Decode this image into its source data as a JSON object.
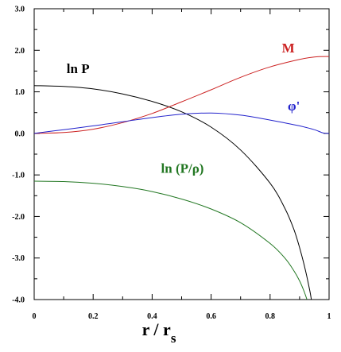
{
  "chart_data": {
    "type": "line",
    "xlim": [
      0,
      1
    ],
    "ylim": [
      -4.0,
      3.0
    ],
    "x_ticks": [
      "0",
      "0.2",
      "0.4",
      "0.6",
      "0.8",
      "1"
    ],
    "y_ticks": [
      "3.0",
      "2.0",
      "1.0",
      "0.0",
      "-1.0",
      "-2.0",
      "-3.0",
      "-4.0"
    ],
    "xlabel_main": "r / r",
    "xlabel_sub": "s",
    "grid": false,
    "series": [
      {
        "name": "ln P",
        "color": "#000000",
        "label_at": [
          0.11,
          1.45
        ],
        "points": [
          [
            0,
            1.15
          ],
          [
            0.1,
            1.13
          ],
          [
            0.2,
            1.07
          ],
          [
            0.3,
            0.95
          ],
          [
            0.4,
            0.77
          ],
          [
            0.5,
            0.52
          ],
          [
            0.6,
            0.15
          ],
          [
            0.7,
            -0.4
          ],
          [
            0.8,
            -1.2
          ],
          [
            0.85,
            -1.8
          ],
          [
            0.88,
            -2.3
          ],
          [
            0.9,
            -2.75
          ],
          [
            0.92,
            -3.3
          ],
          [
            0.935,
            -3.8
          ],
          [
            0.94,
            -4.0
          ]
        ]
      },
      {
        "name": "M",
        "color": "#cc2222",
        "label_at": [
          0.84,
          1.95
        ],
        "points": [
          [
            0,
            0
          ],
          [
            0.1,
            0.02
          ],
          [
            0.2,
            0.1
          ],
          [
            0.3,
            0.26
          ],
          [
            0.4,
            0.48
          ],
          [
            0.5,
            0.76
          ],
          [
            0.6,
            1.05
          ],
          [
            0.7,
            1.35
          ],
          [
            0.8,
            1.6
          ],
          [
            0.9,
            1.78
          ],
          [
            0.95,
            1.84
          ],
          [
            1.0,
            1.85
          ]
        ]
      },
      {
        "name": "φ'",
        "color": "#2222cc",
        "label_at": [
          0.86,
          0.55
        ],
        "points": [
          [
            0,
            0
          ],
          [
            0.1,
            0.09
          ],
          [
            0.2,
            0.18
          ],
          [
            0.3,
            0.28
          ],
          [
            0.4,
            0.38
          ],
          [
            0.5,
            0.46
          ],
          [
            0.6,
            0.49
          ],
          [
            0.7,
            0.44
          ],
          [
            0.8,
            0.32
          ],
          [
            0.9,
            0.18
          ],
          [
            0.95,
            0.09
          ],
          [
            0.98,
            0.01
          ],
          [
            1.0,
            0.0
          ]
        ]
      },
      {
        "name": "ln (P/ρ)",
        "color": "#227722",
        "label_at": [
          0.43,
          -0.95
        ],
        "points": [
          [
            0,
            -1.15
          ],
          [
            0.1,
            -1.16
          ],
          [
            0.2,
            -1.2
          ],
          [
            0.3,
            -1.28
          ],
          [
            0.4,
            -1.4
          ],
          [
            0.5,
            -1.58
          ],
          [
            0.6,
            -1.82
          ],
          [
            0.7,
            -2.15
          ],
          [
            0.8,
            -2.65
          ],
          [
            0.85,
            -3.0
          ],
          [
            0.88,
            -3.3
          ],
          [
            0.9,
            -3.55
          ],
          [
            0.915,
            -3.8
          ],
          [
            0.925,
            -4.0
          ]
        ]
      }
    ]
  }
}
